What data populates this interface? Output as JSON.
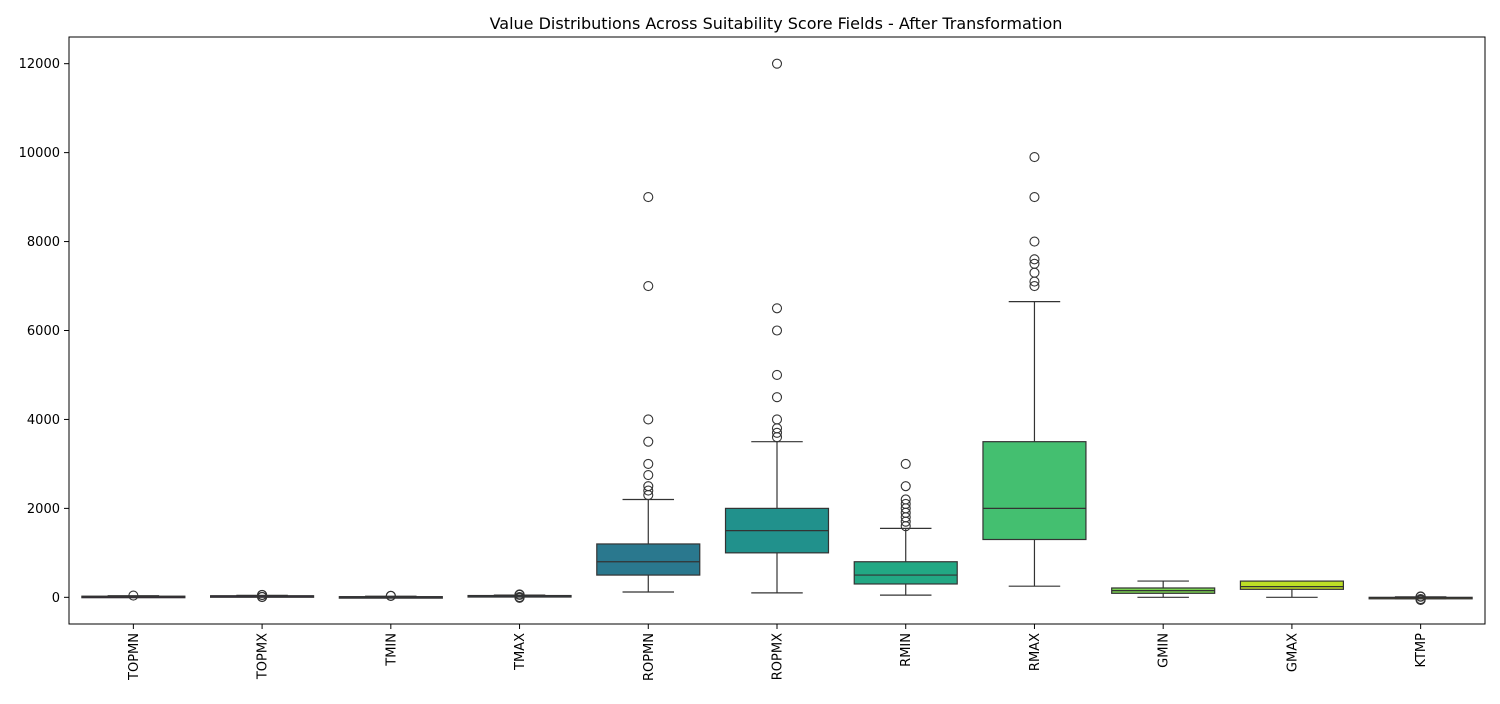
{
  "chart_data": {
    "type": "box",
    "title": "Value Distributions Across Suitability Score Fields - After Transformation",
    "xlabel": "",
    "ylabel": "",
    "ylim": [
      -600,
      12600
    ],
    "yticks": [
      0,
      2000,
      4000,
      6000,
      8000,
      10000,
      12000
    ],
    "grid": false,
    "legend": "none",
    "categories": [
      "TOPMN",
      "TOPMX",
      "TMIN",
      "TMAX",
      "ROPMN",
      "ROPMX",
      "RMIN",
      "RMAX",
      "GMIN",
      "GMAX",
      "KTMP"
    ],
    "colors": [
      "#440154",
      "#482475",
      "#414487",
      "#355f8d",
      "#2a788e",
      "#21918c",
      "#22a884",
      "#44bf70",
      "#7ad151",
      "#bddf26",
      "#fde725"
    ],
    "boxes": [
      {
        "name": "TOPMN",
        "whisker_low": 5,
        "q1": 15,
        "median": 20,
        "q3": 25,
        "whisker_high": 35,
        "outliers": [
          40
        ]
      },
      {
        "name": "TOPMX",
        "whisker_low": 15,
        "q1": 25,
        "median": 30,
        "q3": 35,
        "whisker_high": 45,
        "outliers": [
          5,
          10,
          50,
          55
        ]
      },
      {
        "name": "TMIN",
        "whisker_low": -5,
        "q1": 5,
        "median": 10,
        "q3": 15,
        "whisker_high": 25,
        "outliers": [
          30,
          35
        ]
      },
      {
        "name": "TMAX",
        "whisker_low": 20,
        "q1": 30,
        "median": 35,
        "q3": 40,
        "whisker_high": 50,
        "outliers": [
          -10,
          0,
          5,
          55,
          60,
          65
        ]
      },
      {
        "name": "ROPMN",
        "whisker_low": 120,
        "q1": 500,
        "median": 800,
        "q3": 1200,
        "whisker_high": 2200,
        "outliers": [
          2300,
          2400,
          2500,
          2750,
          3000,
          3500,
          4000,
          7000,
          9000
        ]
      },
      {
        "name": "ROPMX",
        "whisker_low": 100,
        "q1": 1000,
        "median": 1500,
        "q3": 2000,
        "whisker_high": 3500,
        "outliers": [
          3600,
          3700,
          3800,
          4000,
          4500,
          5000,
          6000,
          6500,
          12000
        ]
      },
      {
        "name": "RMIN",
        "whisker_low": 50,
        "q1": 300,
        "median": 500,
        "q3": 800,
        "whisker_high": 1550,
        "outliers": [
          1600,
          1700,
          1800,
          1900,
          2000,
          2100,
          2200,
          2500,
          3000
        ]
      },
      {
        "name": "RMAX",
        "whisker_low": 250,
        "q1": 1300,
        "median": 2000,
        "q3": 3500,
        "whisker_high": 6650,
        "outliers": [
          7000,
          7100,
          7300,
          7500,
          7600,
          8000,
          9000,
          9900
        ]
      },
      {
        "name": "GMIN",
        "whisker_low": 0,
        "q1": 90,
        "median": 150,
        "q3": 210,
        "whisker_high": 365,
        "outliers": []
      },
      {
        "name": "GMAX",
        "whisker_low": 0,
        "q1": 180,
        "median": 240,
        "q3": 365,
        "whisker_high": 365,
        "outliers": []
      },
      {
        "name": "KTMP",
        "whisker_low": -30,
        "q1": -20,
        "median": -10,
        "q3": 0,
        "whisker_high": 10,
        "outliers": [
          -60,
          -50,
          -40,
          15,
          20
        ]
      }
    ]
  }
}
